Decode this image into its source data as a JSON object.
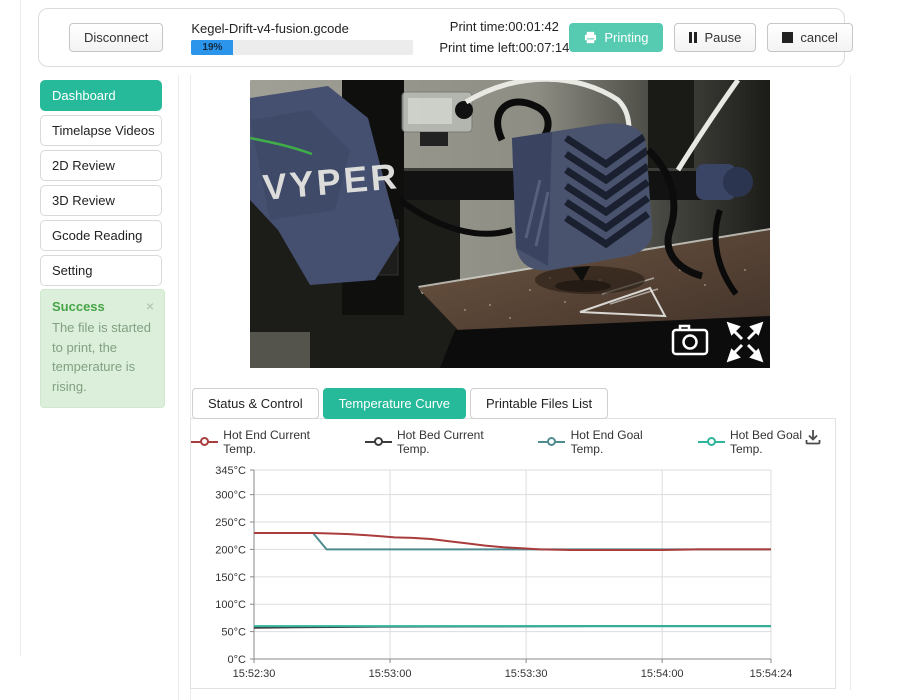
{
  "header": {
    "disconnect_label": "Disconnect",
    "filename": "Kegel-Drift-v4-fusion.gcode",
    "progress_percent_label": "19%",
    "progress_value": 19,
    "print_time": "Print time:00:01:42",
    "print_time_left": "Print time left:00:07:14",
    "printing_label": "Printing",
    "pause_label": "Pause",
    "cancel_label": "cancel"
  },
  "sidebar": {
    "items": [
      {
        "label": "Dashboard",
        "active": true
      },
      {
        "label": "Timelapse Videos",
        "active": false
      },
      {
        "label": "2D Review",
        "active": false
      },
      {
        "label": "3D Review",
        "active": false
      },
      {
        "label": "Gcode Reading",
        "active": false
      },
      {
        "label": "Setting",
        "active": false
      }
    ],
    "notification": {
      "title": "Success",
      "message": "The file is started to print, the temperature is rising.",
      "close_glyph": "×"
    }
  },
  "webcam": {
    "printer_brand_text": "VYPER"
  },
  "tabs": [
    {
      "label": "Status & Control",
      "active": false
    },
    {
      "label": "Temperature Curve",
      "active": true
    },
    {
      "label": "Printable Files List",
      "active": false
    }
  ],
  "colors": {
    "accent_teal": "#26b99a",
    "printing_button_teal": "#57cbb2",
    "progress_blue": "#2b95ec",
    "alert_green_bg": "#dcefdb"
  },
  "chart_data": {
    "type": "line",
    "title": "",
    "xlabel": "",
    "ylabel": "",
    "legend_position": "top",
    "grid": true,
    "y_unit": "°C",
    "ylim": [
      0,
      345
    ],
    "y_ticks": [
      0,
      50,
      100,
      150,
      200,
      250,
      300,
      345
    ],
    "xlim_seconds": [
      0,
      114
    ],
    "x_ticks": [
      {
        "t": 0,
        "label": "15:52:30"
      },
      {
        "t": 30,
        "label": "15:53:00"
      },
      {
        "t": 60,
        "label": "15:53:30"
      },
      {
        "t": 90,
        "label": "15:54:00"
      },
      {
        "t": 114,
        "label": "15:54:24"
      }
    ],
    "series": [
      {
        "name": "Hot End Current Temp.",
        "color": "#a93c3c",
        "points": [
          [
            0,
            230
          ],
          [
            13,
            230
          ],
          [
            17,
            229
          ],
          [
            21,
            228
          ],
          [
            25,
            226
          ],
          [
            28,
            224
          ],
          [
            31,
            222
          ],
          [
            35,
            221
          ],
          [
            39,
            219
          ],
          [
            43,
            215
          ],
          [
            47,
            211
          ],
          [
            51,
            207
          ],
          [
            55,
            204
          ],
          [
            59,
            202
          ],
          [
            63,
            200
          ],
          [
            70,
            199
          ],
          [
            80,
            199
          ],
          [
            90,
            199
          ],
          [
            98,
            200
          ],
          [
            114,
            200
          ]
        ]
      },
      {
        "name": "Hot Bed Current Temp.",
        "color": "#3d3d3d",
        "points": [
          [
            0,
            57
          ],
          [
            10,
            58
          ],
          [
            25,
            59
          ],
          [
            50,
            59.5
          ],
          [
            75,
            60
          ],
          [
            114,
            60
          ]
        ]
      },
      {
        "name": "Hot End Goal Temp.",
        "color": "#4f8c92",
        "points": [
          [
            0,
            230
          ],
          [
            13,
            230
          ],
          [
            16,
            200
          ],
          [
            114,
            200
          ]
        ]
      },
      {
        "name": "Hot Bed Goal Temp.",
        "color": "#2eb49b",
        "points": [
          [
            0,
            60
          ],
          [
            114,
            60
          ]
        ]
      }
    ],
    "draw_order": [
      1,
      2,
      3,
      0
    ]
  }
}
